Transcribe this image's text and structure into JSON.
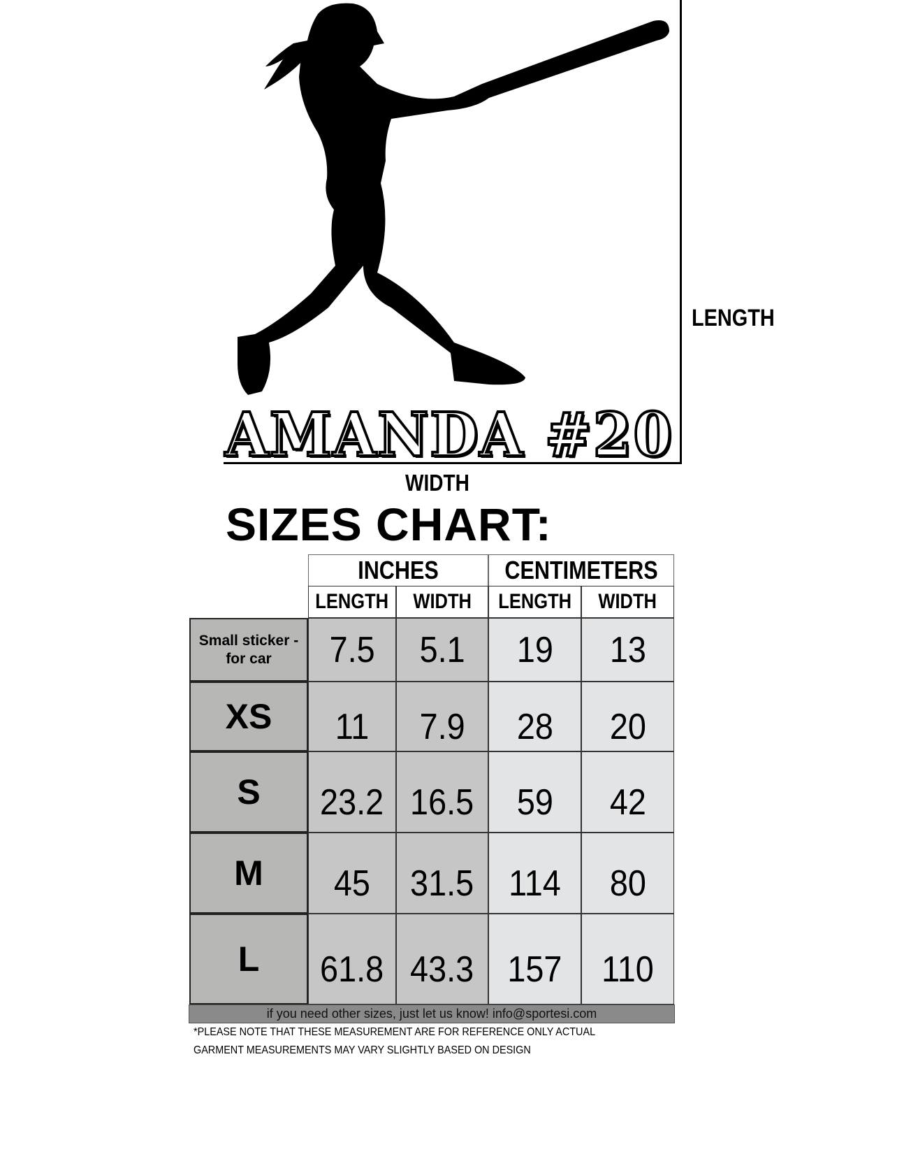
{
  "labels": {
    "length": "LENGTH",
    "width": "WIDTH"
  },
  "name_print": "AMANDA #20",
  "title": "SIZES CHART:",
  "table": {
    "groups": [
      "INCHES",
      "CENTIMETERS"
    ],
    "subheaders": [
      "LENGTH",
      "WIDTH",
      "LENGTH",
      "WIDTH"
    ],
    "rows": [
      {
        "size": "Small sticker - for car",
        "values": [
          "7.5",
          "5.1",
          "19",
          "13"
        ]
      },
      {
        "size": "XS",
        "values": [
          "11",
          "7.9",
          "28",
          "20"
        ]
      },
      {
        "size": "S",
        "values": [
          "23.2",
          "16.5",
          "59",
          "42"
        ]
      },
      {
        "size": "M",
        "values": [
          "45",
          "31.5",
          "114",
          "80"
        ]
      },
      {
        "size": "L",
        "values": [
          "61.8",
          "43.3",
          "157",
          "110"
        ]
      }
    ]
  },
  "footer": "if you need other sizes, just let us know! info@sportesi.com",
  "notes": [
    "*PLEASE NOTE THAT THESE MEASUREMENT ARE FOR REFERENCE ONLY ACTUAL",
    "GARMENT MEASUREMENTS MAY VARY SLIGHTLY BASED ON DESIGN"
  ],
  "colors": {
    "size_col": "#b7b7b6",
    "inches": "#c6c6c6",
    "cm": "#e3e4e6",
    "footer": "#8a8a8a"
  }
}
